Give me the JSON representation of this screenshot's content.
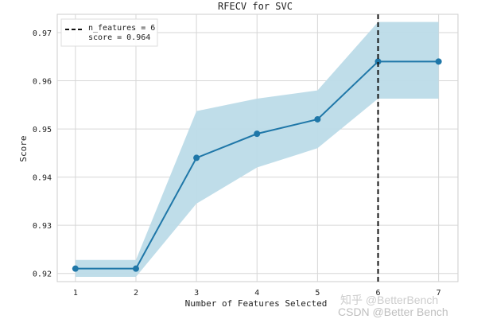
{
  "chart_data": {
    "type": "line",
    "title": "RFECV for SVC",
    "xlabel": "Number of Features Selected",
    "ylabel": "Score",
    "x": [
      1,
      2,
      3,
      4,
      5,
      6,
      7
    ],
    "xticks": [
      "1",
      "2",
      "3",
      "4",
      "5",
      "6",
      "7"
    ],
    "yticks": [
      "0.92",
      "0.93",
      "0.94",
      "0.95",
      "0.96",
      "0.97"
    ],
    "xlim": [
      0.7,
      7.32
    ],
    "ylim": [
      0.9183,
      0.9738
    ],
    "series": [
      {
        "name": "score",
        "values": [
          0.921,
          0.921,
          0.944,
          0.949,
          0.952,
          0.964,
          0.964
        ],
        "band_upper": [
          0.9228,
          0.9228,
          0.9537,
          0.9563,
          0.958,
          0.9722,
          0.9722
        ],
        "band_lower": [
          0.9193,
          0.9193,
          0.9345,
          0.942,
          0.946,
          0.9563,
          0.9563
        ]
      }
    ],
    "vline": {
      "x": 6,
      "style": "dashed"
    },
    "legend": {
      "position": "top-left",
      "line1": "n_features = 6",
      "line2": "score = 0.964"
    },
    "colors": {
      "line": "#1f77a8",
      "band": "#bcdbe8",
      "grid": "#d6d6d6",
      "vline": "#111111"
    },
    "grid": true
  },
  "watermark": {
    "zhihu": "知乎 @BetterBench",
    "csdn": "CSDN @Better Bench"
  }
}
